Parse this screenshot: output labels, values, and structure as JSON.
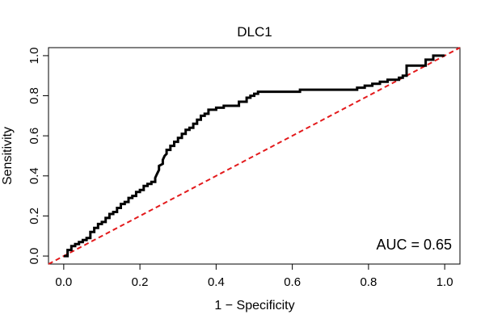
{
  "chart_data": {
    "type": "line",
    "title": "DLC1",
    "xlabel": "1 − Specificity",
    "ylabel": "Sensitivity",
    "xlim": [
      -0.04,
      1.04
    ],
    "ylim": [
      -0.04,
      1.04
    ],
    "x_ticks": [
      "0.0",
      "0.2",
      "0.4",
      "0.6",
      "0.8",
      "1.0"
    ],
    "y_ticks": [
      "0.0",
      "0.2",
      "0.4",
      "0.6",
      "0.8",
      "1.0"
    ],
    "grid": false,
    "annotation": "AUC = 0.65",
    "colors": {
      "roc": "#000000",
      "reference": "#e31a1c"
    },
    "series": [
      {
        "role": "roc",
        "x": [
          0.0,
          0.01,
          0.01,
          0.02,
          0.02,
          0.03,
          0.03,
          0.04,
          0.04,
          0.05,
          0.05,
          0.06,
          0.06,
          0.07,
          0.07,
          0.08,
          0.08,
          0.09,
          0.09,
          0.1,
          0.1,
          0.11,
          0.11,
          0.12,
          0.12,
          0.13,
          0.13,
          0.14,
          0.14,
          0.15,
          0.15,
          0.16,
          0.16,
          0.17,
          0.17,
          0.18,
          0.18,
          0.19,
          0.19,
          0.2,
          0.2,
          0.21,
          0.21,
          0.22,
          0.22,
          0.23,
          0.23,
          0.24,
          0.24,
          0.245,
          0.25,
          0.25,
          0.26,
          0.26,
          0.265,
          0.27,
          0.27,
          0.28,
          0.28,
          0.29,
          0.29,
          0.3,
          0.3,
          0.31,
          0.31,
          0.32,
          0.32,
          0.33,
          0.33,
          0.34,
          0.34,
          0.35,
          0.35,
          0.36,
          0.36,
          0.37,
          0.37,
          0.38,
          0.38,
          0.4,
          0.4,
          0.42,
          0.42,
          0.46,
          0.46,
          0.48,
          0.48,
          0.49,
          0.49,
          0.5,
          0.5,
          0.51,
          0.51,
          0.62,
          0.62,
          0.77,
          0.77,
          0.79,
          0.79,
          0.81,
          0.81,
          0.83,
          0.83,
          0.85,
          0.85,
          0.88,
          0.88,
          0.89,
          0.89,
          0.9,
          0.9,
          0.95,
          0.95,
          0.97,
          0.97,
          1.0
        ],
        "y": [
          0.0,
          0.0,
          0.03,
          0.03,
          0.05,
          0.05,
          0.06,
          0.06,
          0.07,
          0.07,
          0.08,
          0.08,
          0.09,
          0.09,
          0.12,
          0.12,
          0.14,
          0.14,
          0.16,
          0.16,
          0.17,
          0.17,
          0.19,
          0.19,
          0.21,
          0.21,
          0.22,
          0.22,
          0.24,
          0.24,
          0.26,
          0.26,
          0.27,
          0.27,
          0.29,
          0.29,
          0.3,
          0.3,
          0.32,
          0.32,
          0.33,
          0.33,
          0.35,
          0.35,
          0.36,
          0.36,
          0.37,
          0.37,
          0.39,
          0.41,
          0.43,
          0.45,
          0.46,
          0.48,
          0.5,
          0.51,
          0.53,
          0.53,
          0.55,
          0.55,
          0.57,
          0.57,
          0.59,
          0.59,
          0.61,
          0.61,
          0.63,
          0.63,
          0.64,
          0.64,
          0.66,
          0.66,
          0.68,
          0.68,
          0.7,
          0.7,
          0.71,
          0.71,
          0.73,
          0.73,
          0.74,
          0.74,
          0.75,
          0.75,
          0.77,
          0.77,
          0.79,
          0.79,
          0.8,
          0.8,
          0.81,
          0.81,
          0.82,
          0.82,
          0.83,
          0.83,
          0.84,
          0.84,
          0.85,
          0.85,
          0.86,
          0.86,
          0.87,
          0.87,
          0.88,
          0.88,
          0.89,
          0.89,
          0.9,
          0.9,
          0.95,
          0.95,
          0.98,
          0.98,
          1.0,
          1.0
        ]
      },
      {
        "role": "reference",
        "x": [
          -0.04,
          1.04
        ],
        "y": [
          -0.04,
          1.04
        ]
      }
    ]
  }
}
